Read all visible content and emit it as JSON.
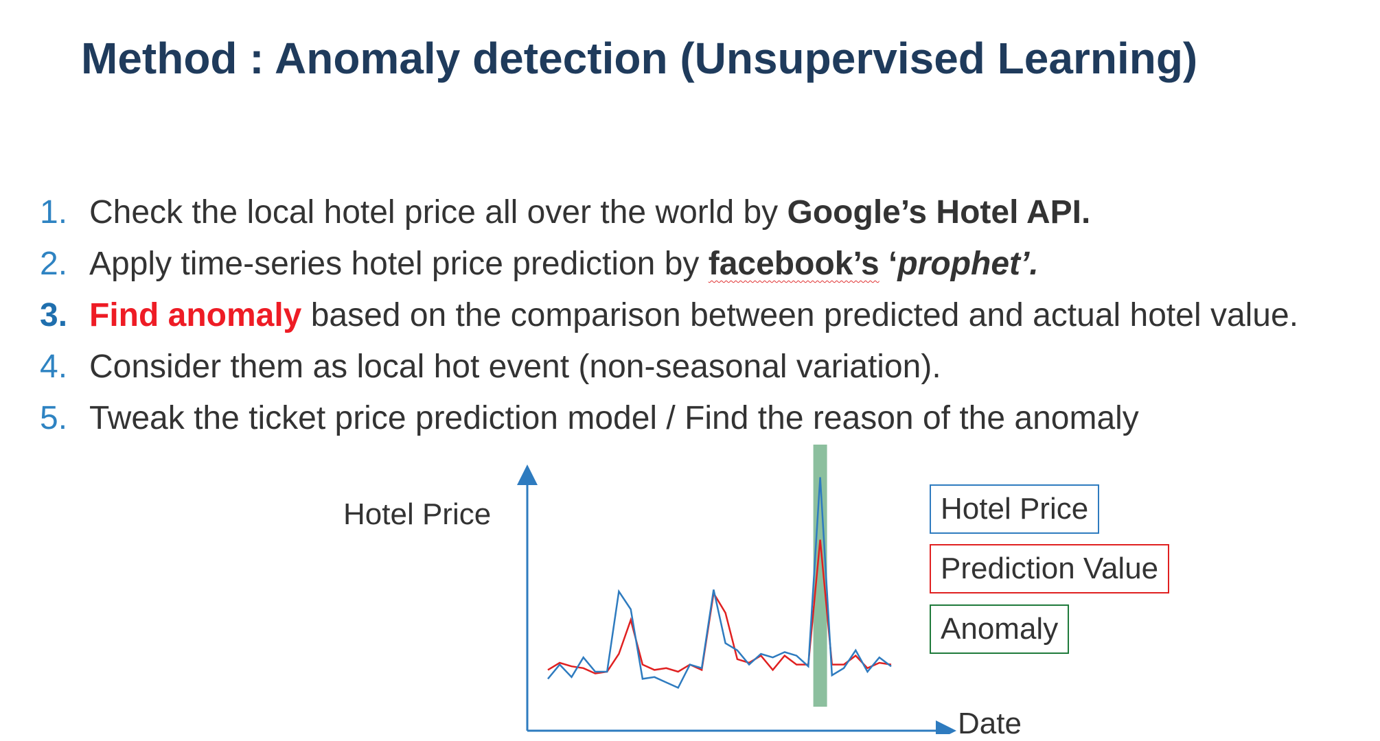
{
  "title": "Method : Anomaly detection (Unsupervised Learning)",
  "steps": [
    {
      "num": "1.",
      "pre": "Check the local hotel price all over the world by ",
      "bold": "Google’s Hotel API."
    },
    {
      "num": "2.",
      "pre": "Apply time-series hotel price prediction by ",
      "bold": "facebook’s",
      "bold2": " ‘",
      "ital": "prophet’."
    },
    {
      "num": "3.",
      "red": "Find anomaly",
      "post": " based on the comparison between predicted and actual hotel value."
    },
    {
      "num": "4.",
      "pre": "Consider them as local hot event (non-seasonal variation)."
    },
    {
      "num": "5.",
      "pre": "Tweak the ticket price prediction model / Find the reason of the anomaly"
    }
  ],
  "chart_data": {
    "type": "line",
    "ylabel": "Hotel Price",
    "xlabel": "Date",
    "x": [
      0,
      1,
      2,
      3,
      4,
      5,
      6,
      7,
      8,
      9,
      10,
      11,
      12,
      13,
      14,
      15,
      16,
      17,
      18,
      19,
      20,
      21,
      22,
      23,
      24,
      25,
      26,
      27,
      28,
      29
    ],
    "series": [
      {
        "name": "Hotel Price",
        "color": "#2e7bbf",
        "values": [
          12,
          28,
          14,
          36,
          20,
          20,
          110,
          90,
          12,
          14,
          8,
          2,
          28,
          24,
          112,
          52,
          44,
          28,
          40,
          36,
          42,
          38,
          26,
          238,
          16,
          24,
          44,
          20,
          36,
          26
        ]
      },
      {
        "name": "Prediction Value",
        "color": "#e02020",
        "values": [
          22,
          30,
          26,
          24,
          18,
          20,
          40,
          78,
          28,
          22,
          24,
          20,
          28,
          22,
          108,
          86,
          34,
          30,
          38,
          22,
          38,
          28,
          28,
          168,
          28,
          28,
          38,
          24,
          30,
          28
        ]
      }
    ],
    "anomaly": {
      "label": "Anomaly",
      "color": "#8cbf9e",
      "x_center": 23
    },
    "legend": "right"
  }
}
